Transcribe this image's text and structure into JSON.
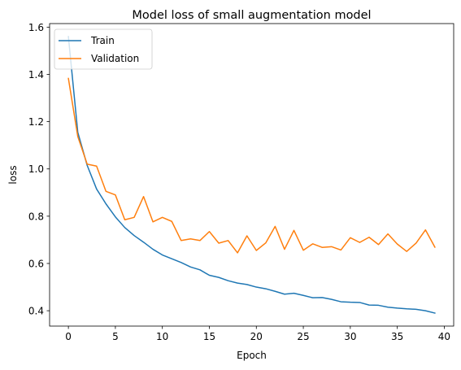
{
  "chart_data": {
    "type": "line",
    "title": "Model loss of small augmentation model",
    "xlabel": "Epoch",
    "ylabel": "loss",
    "xlim": [
      -2,
      41
    ],
    "ylim": [
      0.335,
      1.615
    ],
    "xticks": [
      0,
      5,
      10,
      15,
      20,
      25,
      30,
      35,
      40
    ],
    "yticks": [
      0.4,
      0.6,
      0.8,
      1.0,
      1.2,
      1.4,
      1.6
    ],
    "ytick_labels": [
      "0.4",
      "0.6",
      "0.8",
      "1.0",
      "1.2",
      "1.4",
      "1.6"
    ],
    "grid": false,
    "legend_position": "top-left",
    "x": [
      0,
      1,
      2,
      3,
      4,
      5,
      6,
      7,
      8,
      9,
      10,
      11,
      12,
      13,
      14,
      15,
      16,
      17,
      18,
      19,
      20,
      21,
      22,
      23,
      24,
      25,
      26,
      27,
      28,
      29,
      30,
      31,
      32,
      33,
      34,
      35,
      36,
      37,
      38,
      39
    ],
    "series": [
      {
        "name": "Train",
        "color": "#1f77b4",
        "values": [
          1.56,
          1.155,
          1.015,
          0.915,
          0.852,
          0.797,
          0.752,
          0.718,
          0.69,
          0.66,
          0.636,
          0.62,
          0.604,
          0.585,
          0.573,
          0.55,
          0.541,
          0.527,
          0.517,
          0.511,
          0.5,
          0.493,
          0.482,
          0.47,
          0.474,
          0.465,
          0.455,
          0.456,
          0.448,
          0.438,
          0.436,
          0.435,
          0.424,
          0.423,
          0.415,
          0.411,
          0.408,
          0.406,
          0.4,
          0.39
        ]
      },
      {
        "name": "Validation",
        "color": "#ff7f0e",
        "values": [
          1.383,
          1.137,
          1.02,
          1.012,
          0.905,
          0.89,
          0.785,
          0.795,
          0.883,
          0.776,
          0.795,
          0.778,
          0.697,
          0.704,
          0.697,
          0.735,
          0.686,
          0.697,
          0.645,
          0.717,
          0.655,
          0.687,
          0.757,
          0.66,
          0.74,
          0.656,
          0.683,
          0.668,
          0.671,
          0.657,
          0.709,
          0.689,
          0.711,
          0.68,
          0.725,
          0.682,
          0.651,
          0.686,
          0.742,
          0.669
        ]
      }
    ]
  }
}
